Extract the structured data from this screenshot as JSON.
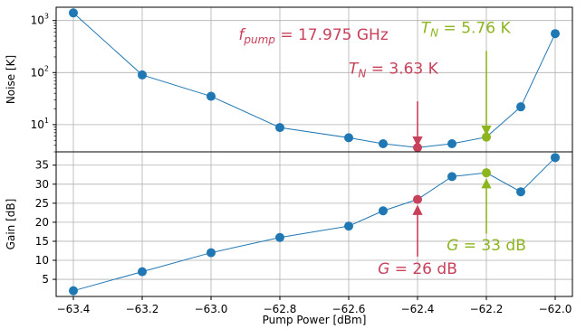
{
  "chart_data": [
    {
      "panel": "noise",
      "type": "line",
      "ylabel": "Noise [K]",
      "yscale": "log",
      "ylim": [
        3,
        1800
      ],
      "yticks": [
        {
          "value": 10,
          "base": "10",
          "exp": "1"
        },
        {
          "value": 100,
          "base": "10",
          "exp": "2"
        },
        {
          "value": 1000,
          "base": "10",
          "exp": "3"
        }
      ],
      "grid": true,
      "x": [
        -63.4,
        -63.2,
        -63.0,
        -62.8,
        -62.6,
        -62.5,
        -62.4,
        -62.3,
        -62.2,
        -62.1,
        -62.0
      ],
      "values": [
        1400,
        90,
        35,
        8.8,
        5.6,
        4.3,
        3.63,
        4.3,
        5.76,
        22,
        560
      ],
      "colors": {
        "line": "#1f77b4",
        "marker": "#1f77b4",
        "grid": "#b0b0b0"
      },
      "highlights": [
        {
          "x": -62.4,
          "y": 3.63,
          "color": "#c8415a"
        },
        {
          "x": -62.2,
          "y": 5.76,
          "color": "#8db51e"
        }
      ],
      "annotations": [
        {
          "kind": "title",
          "base": "f",
          "sub": "pump",
          "tail": " = 17.975 GHz",
          "x": -62.92,
          "y": 430,
          "color": "#c8415a"
        },
        {
          "kind": "arrow",
          "base": "T",
          "sub": "N",
          "tail": " = 3.63 K",
          "tx": -62.47,
          "ty": 80,
          "text_y": 95,
          "from_y": 28,
          "to_y": 3.95,
          "arrow_x": -62.4,
          "color": "#c8415a"
        },
        {
          "kind": "arrow",
          "base": "T",
          "sub": "N",
          "tail": " = 5.76 K",
          "tx": -62.26,
          "ty": 500,
          "text_y": 580,
          "from_y": 260,
          "to_y": 6.4,
          "arrow_x": -62.2,
          "color": "#8db51e"
        }
      ]
    },
    {
      "panel": "gain",
      "type": "line",
      "ylabel": "Gain [dB]",
      "xlabel": "Pump Power [dBm]",
      "ylim": [
        0.5,
        38.5
      ],
      "yticks": [
        5,
        10,
        15,
        20,
        25,
        30,
        35
      ],
      "xlim": [
        -63.45,
        -61.95
      ],
      "xticks": [
        {
          "value": -63.4,
          "label": "−63.4"
        },
        {
          "value": -63.2,
          "label": "−63.2"
        },
        {
          "value": -63.0,
          "label": "−63.0"
        },
        {
          "value": -62.8,
          "label": "−62.8"
        },
        {
          "value": -62.6,
          "label": "−62.6"
        },
        {
          "value": -62.4,
          "label": "−62.4"
        },
        {
          "value": -62.2,
          "label": "−62.2"
        },
        {
          "value": -62.0,
          "label": "−62.0"
        }
      ],
      "grid": true,
      "x": [
        -63.4,
        -63.2,
        -63.0,
        -62.8,
        -62.6,
        -62.5,
        -62.4,
        -62.3,
        -62.2,
        -62.1,
        -62.0
      ],
      "values": [
        2,
        7,
        12,
        16,
        19,
        23,
        26,
        32,
        33,
        28,
        37
      ],
      "colors": {
        "line": "#1f77b4",
        "marker": "#1f77b4",
        "grid": "#b0b0b0"
      },
      "highlights": [
        {
          "x": -62.4,
          "y": 26,
          "color": "#c8415a"
        },
        {
          "x": -62.2,
          "y": 33,
          "color": "#8db51e"
        }
      ],
      "annotations": [
        {
          "kind": "arrow",
          "base": "G",
          "sub": "",
          "tail": " = 26 dB",
          "tx": -62.4,
          "ty": 8,
          "text_y": 6.4,
          "from_y": 11,
          "to_y": 24.3,
          "arrow_x": -62.4,
          "color": "#c8415a"
        },
        {
          "kind": "arrow",
          "base": "G",
          "sub": "",
          "tail": " = 33 dB",
          "tx": -62.2,
          "ty": 14.5,
          "text_y": 12.6,
          "from_y": 17,
          "to_y": 31.3,
          "arrow_x": -62.2,
          "color": "#8db51e"
        }
      ]
    }
  ]
}
